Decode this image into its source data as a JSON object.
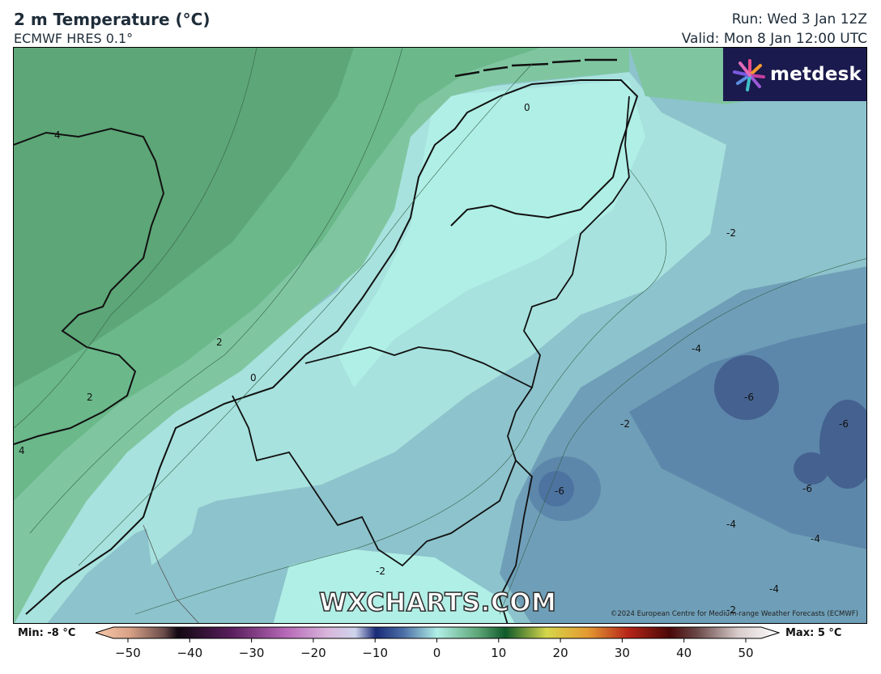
{
  "header": {
    "title": "2 m Temperature (°C)",
    "subtitle": "ECMWF HRES 0.1°",
    "run": "Run: Wed 3 Jan 12Z",
    "valid": "Valid: Mon 8 Jan 12:00 UTC"
  },
  "branding": {
    "logo_text": "metdesk",
    "watermark": "WXCHARTS.COM",
    "copyright": "©2024 European Centre for Medium-range Weather Forecasts (ECMWF)"
  },
  "contour_labels": [
    "4",
    "2",
    "0",
    "-2",
    "-4",
    "-6"
  ],
  "map_labels": [
    {
      "text": "4"
    },
    {
      "text": "2"
    },
    {
      "text": "2"
    },
    {
      "text": "0"
    },
    {
      "text": "4"
    },
    {
      "text": "0"
    },
    {
      "text": "-2"
    },
    {
      "text": "-4"
    },
    {
      "text": "-6"
    },
    {
      "text": "-2"
    },
    {
      "text": "-6"
    },
    {
      "text": "-6"
    },
    {
      "text": "-6"
    },
    {
      "text": "-4"
    },
    {
      "text": "-4"
    },
    {
      "text": "-4"
    },
    {
      "text": "-2"
    },
    {
      "text": "-2"
    }
  ],
  "legend": {
    "min_label": "Min: -8 °C",
    "max_label": "Max: 5 °C",
    "ticks": [
      "−50",
      "−40",
      "−30",
      "−20",
      "−10",
      "0",
      "10",
      "20",
      "30",
      "40",
      "50"
    ],
    "tick_values": [
      -50,
      -40,
      -30,
      -20,
      -10,
      0,
      10,
      20,
      30,
      40,
      50
    ],
    "range": [
      -50,
      50
    ]
  },
  "colors": {
    "land_coldest": "#44618f",
    "land_cold": "#6f9fb8",
    "land_cool": "#9ed3d8",
    "land_mild": "#b0efe6",
    "sea_warm": "#5da677",
    "sea_mild": "#7fc6a0",
    "logo_bg": "#1b1a4e"
  }
}
